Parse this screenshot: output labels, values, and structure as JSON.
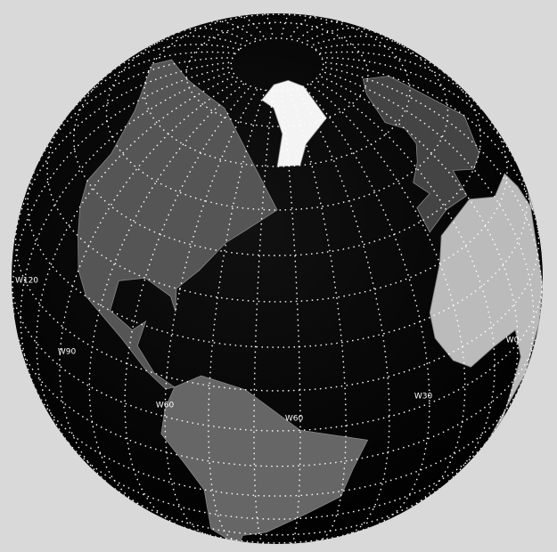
{
  "map": {
    "labels": [
      "W120",
      "W90",
      "W60",
      "W60",
      "W30",
      "W0"
    ]
  }
}
